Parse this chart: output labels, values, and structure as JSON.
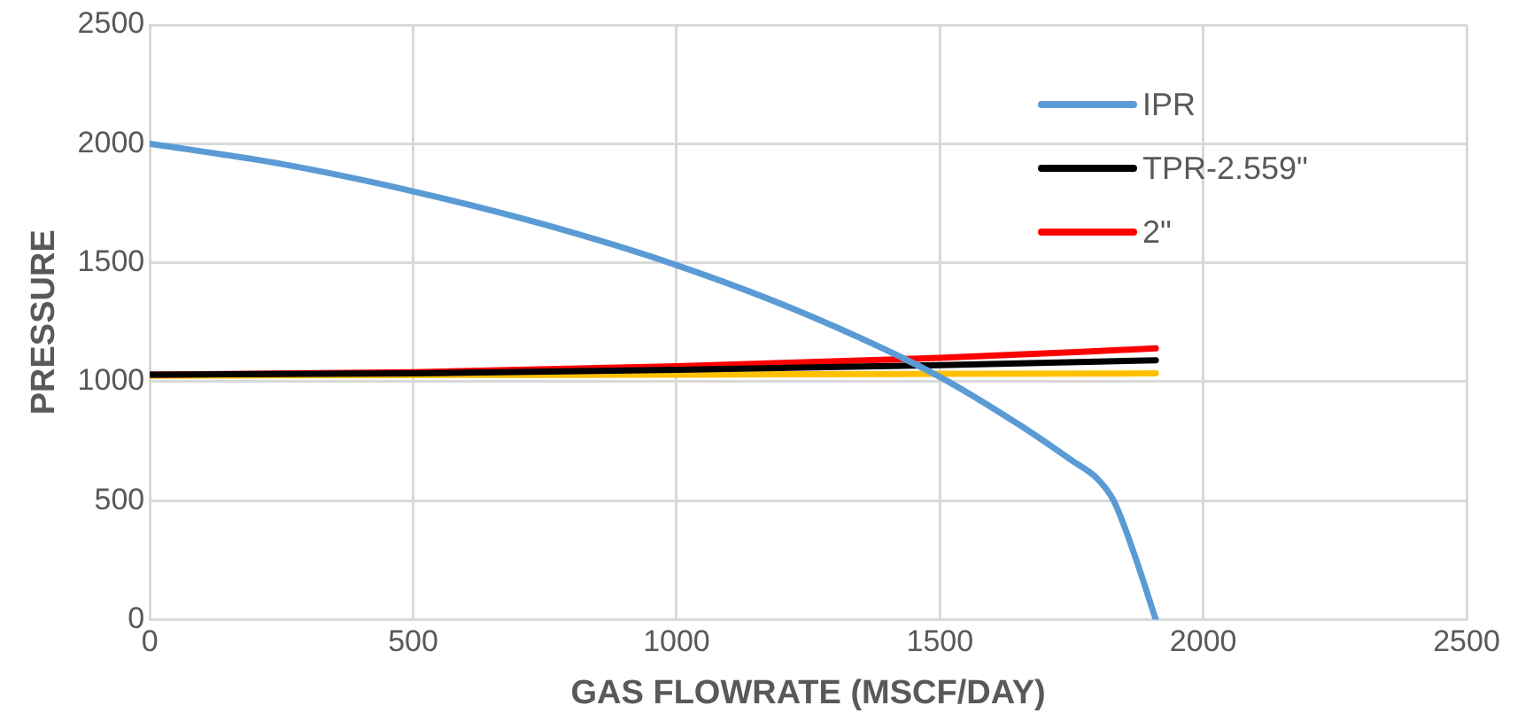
{
  "chart_data": {
    "type": "line",
    "xlabel": "GAS FLOWRATE (MSCF/DAY)",
    "ylabel": "PRESSURE",
    "xlim": [
      0,
      2500
    ],
    "xticks": [
      0,
      500,
      1000,
      1500,
      2000,
      2500
    ],
    "ylim": [
      0,
      2500
    ],
    "yticks": [
      0,
      500,
      1000,
      1500,
      2000,
      2500
    ],
    "grid": true,
    "legend": "top right",
    "marker": "none",
    "line_style": "solid",
    "series": [
      {
        "name": "IPR",
        "color": "#5b9bd5",
        "x": [
          0,
          250,
          500,
          750,
          1000,
          1250,
          1500,
          1650,
          1750,
          1800,
          1830,
          1870,
          1910
        ],
        "values": [
          2000,
          1915,
          1800,
          1660,
          1490,
          1280,
          1020,
          820,
          670,
          590,
          500,
          270,
          0
        ]
      },
      {
        "name": "TPR-2.559\"",
        "color": "#000000",
        "x": [
          0,
          500,
          1000,
          1500,
          1910
        ],
        "values": [
          1030,
          1035,
          1050,
          1070,
          1090
        ]
      },
      {
        "name": "2\"",
        "color": "#ff0000",
        "x": [
          0,
          500,
          1000,
          1500,
          1910
        ],
        "values": [
          1030,
          1040,
          1065,
          1100,
          1140
        ]
      },
      {
        "color": "#ffc000",
        "x": [
          0,
          500,
          1000,
          1500,
          1910
        ],
        "values": [
          1025,
          1028,
          1030,
          1033,
          1035
        ]
      }
    ]
  }
}
